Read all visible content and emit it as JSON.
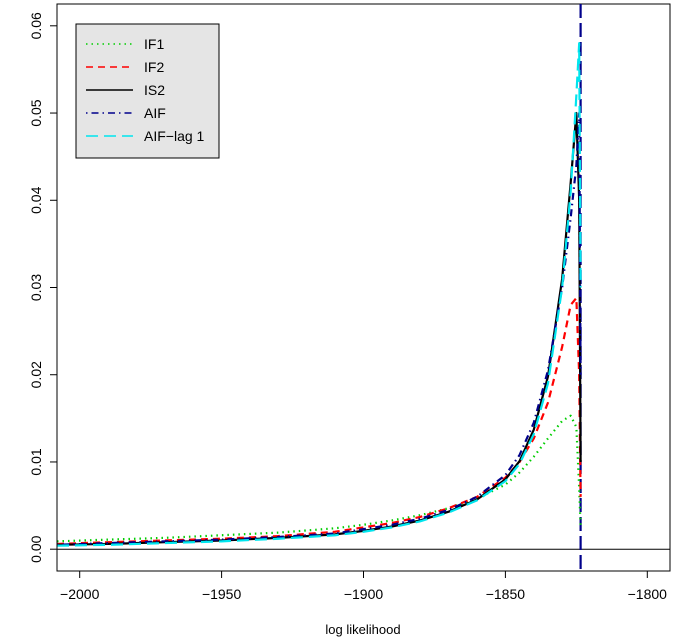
{
  "chart_data": {
    "type": "line",
    "title": "",
    "xlabel": "log likelihood",
    "ylabel": "",
    "xlim": [
      -2008,
      -1792
    ],
    "ylim": [
      -0.0025,
      0.0625
    ],
    "x_ticks": [
      -2000,
      -1950,
      -1900,
      -1850,
      -1800
    ],
    "x_tick_labels": [
      "−2000",
      "−1950",
      "−1900",
      "−1850",
      "−1800"
    ],
    "y_ticks": [
      0.0,
      0.01,
      0.02,
      0.03,
      0.04,
      0.05,
      0.06
    ],
    "y_tick_labels": [
      "0.00",
      "0.01",
      "0.02",
      "0.03",
      "0.04",
      "0.05",
      "0.06"
    ],
    "grid": false,
    "legend_position": "top-left",
    "horizontal_reference_line": 0,
    "vertical_reference_line": {
      "x": -1823.5,
      "color": "#00008b"
    },
    "series": [
      {
        "name": "IF1",
        "color": "#00cd00",
        "dash": "dotted",
        "x": [
          -2008,
          -1990,
          -1970,
          -1950,
          -1930,
          -1910,
          -1900,
          -1890,
          -1880,
          -1870,
          -1860,
          -1850,
          -1845,
          -1840,
          -1835,
          -1830,
          -1827,
          -1825,
          -1824,
          -1823.5
        ],
        "y": [
          0.0009,
          0.0011,
          0.0013,
          0.0016,
          0.0019,
          0.0024,
          0.0028,
          0.0033,
          0.0039,
          0.0047,
          0.0058,
          0.0074,
          0.0088,
          0.0106,
          0.0127,
          0.0147,
          0.0153,
          0.014,
          0.007,
          0.0025
        ]
      },
      {
        "name": "IF2",
        "color": "#ff0000",
        "dash": "dashed",
        "x": [
          -2008,
          -1990,
          -1970,
          -1950,
          -1930,
          -1910,
          -1900,
          -1890,
          -1880,
          -1870,
          -1860,
          -1850,
          -1845,
          -1840,
          -1835,
          -1830,
          -1827,
          -1825,
          -1824,
          -1823.5
        ],
        "y": [
          0.0006,
          0.0008,
          0.001,
          0.0012,
          0.0015,
          0.002,
          0.0025,
          0.003,
          0.0037,
          0.0047,
          0.006,
          0.0082,
          0.01,
          0.0127,
          0.0168,
          0.0232,
          0.028,
          0.0288,
          0.02,
          0.006
        ]
      },
      {
        "name": "IS2",
        "color": "#000000",
        "dash": "solid",
        "x": [
          -2008,
          -1990,
          -1970,
          -1950,
          -1930,
          -1910,
          -1900,
          -1890,
          -1880,
          -1870,
          -1860,
          -1850,
          -1845,
          -1840,
          -1835,
          -1830,
          -1827,
          -1825,
          -1824,
          -1823.5
        ],
        "y": [
          0.0005,
          0.0006,
          0.0008,
          0.001,
          0.0013,
          0.0017,
          0.0021,
          0.0026,
          0.0033,
          0.0043,
          0.0057,
          0.008,
          0.0101,
          0.0137,
          0.0198,
          0.031,
          0.042,
          0.05,
          0.04,
          0.01
        ]
      },
      {
        "name": "AIF",
        "color": "#00008b",
        "dash": "dotdash",
        "x": [
          -2008,
          -1990,
          -1970,
          -1950,
          -1930,
          -1910,
          -1900,
          -1890,
          -1880,
          -1870,
          -1860,
          -1850,
          -1845,
          -1840,
          -1835,
          -1830,
          -1827,
          -1825,
          -1824,
          -1823.5
        ],
        "y": [
          0.0005,
          0.0007,
          0.0009,
          0.0011,
          0.0014,
          0.0018,
          0.0023,
          0.0028,
          0.0035,
          0.0045,
          0.006,
          0.0085,
          0.0108,
          0.0145,
          0.0205,
          0.03,
          0.038,
          0.044,
          0.05,
          0.02
        ]
      },
      {
        "name": "AIF−lag 1",
        "color": "#00e5ee",
        "dash": "longdash",
        "x": [
          -2008,
          -1990,
          -1970,
          -1950,
          -1930,
          -1910,
          -1900,
          -1890,
          -1880,
          -1870,
          -1860,
          -1850,
          -1845,
          -1840,
          -1835,
          -1830,
          -1827,
          -1825,
          -1824,
          -1823.5
        ],
        "y": [
          0.0004,
          0.0005,
          0.0007,
          0.0009,
          0.0012,
          0.0016,
          0.002,
          0.0025,
          0.0032,
          0.0042,
          0.0056,
          0.0078,
          0.0098,
          0.0132,
          0.019,
          0.03,
          0.041,
          0.052,
          0.058,
          0.03
        ]
      }
    ]
  }
}
